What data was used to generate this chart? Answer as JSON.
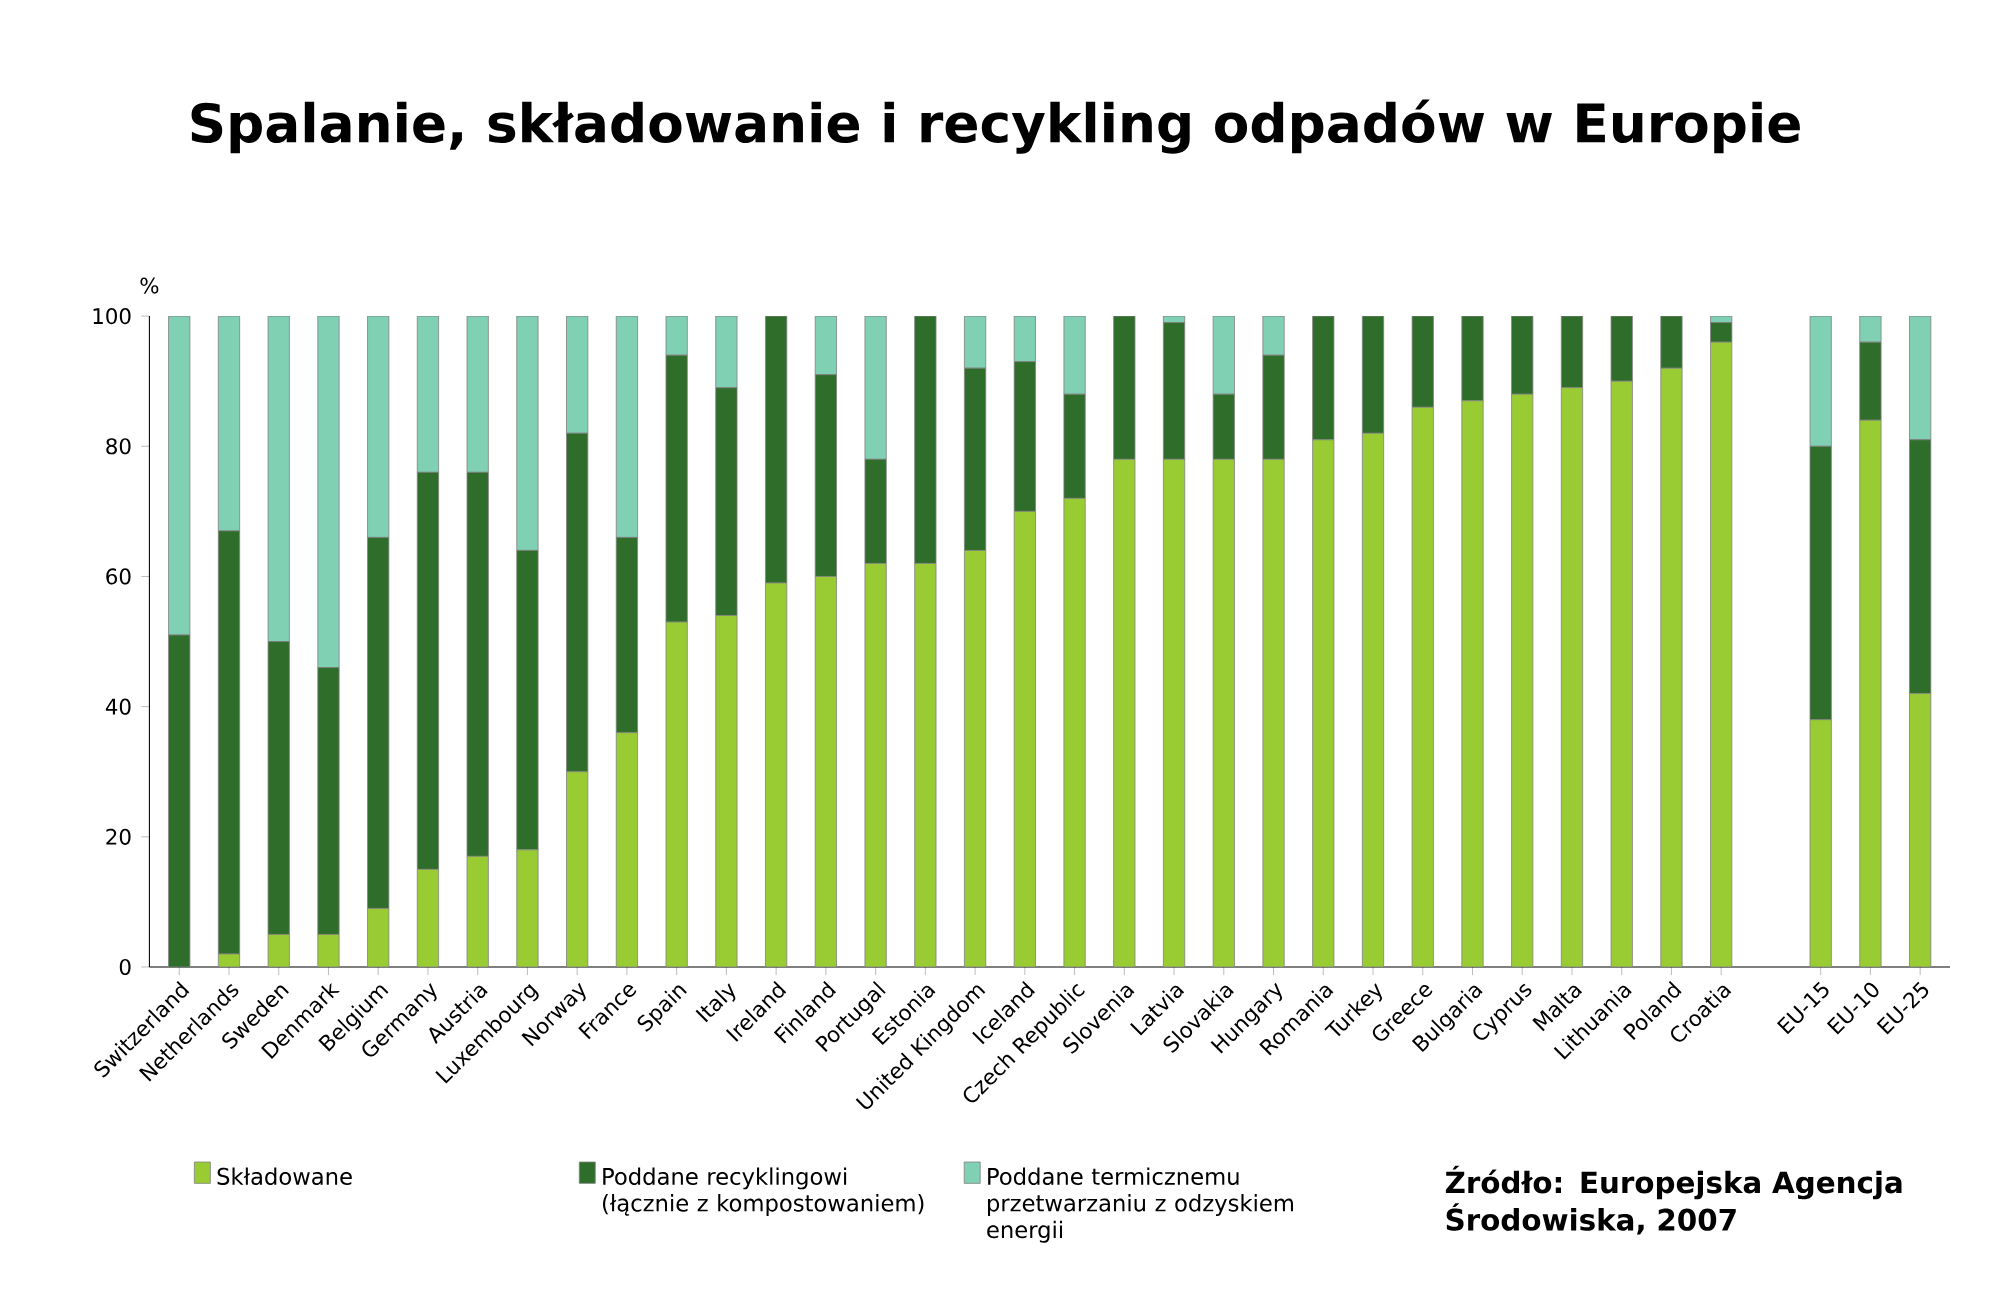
{
  "chart_data": {
    "type": "bar",
    "stacked": true,
    "title": "Spalanie, składowanie i recykling odpadów w Europie",
    "ylabel": "%",
    "categories": [
      "Switzerland",
      "Netherlands",
      "Sweden",
      "Denmark",
      "Belgium",
      "Germany",
      "Austria",
      "Luxembourg",
      "Norway",
      "France",
      "Spain",
      "Italy",
      "Ireland",
      "Finland",
      "Portugal",
      "Estonia",
      "United Kingdom",
      "Iceland",
      "Czech Republic",
      "Slovenia",
      "Latvia",
      "Slovakia",
      "Hungary",
      "Romania",
      "Turkey",
      "Greece",
      "Bulgaria",
      "Cyprus",
      "Malta",
      "Lithuania",
      "Poland",
      "Croatia",
      null,
      "EU-15",
      "EU-10",
      "EU-25"
    ],
    "series": [
      {
        "name": "Składowane",
        "color": "#99cc33",
        "values": [
          0,
          2,
          5,
          5,
          9,
          15,
          17,
          18,
          30,
          36,
          53,
          54,
          59,
          60,
          62,
          62,
          64,
          70,
          72,
          78,
          78,
          78,
          78,
          81,
          82,
          86,
          87,
          88,
          89,
          90,
          92,
          96,
          null,
          38,
          84,
          42
        ]
      },
      {
        "name": "Poddane recyklingowi (łącznie z kompostowaniem)",
        "color": "#2e6e2a",
        "values": [
          51,
          65,
          45,
          41,
          57,
          61,
          59,
          46,
          52,
          30,
          41,
          35,
          41,
          31,
          16,
          38,
          28,
          23,
          16,
          22,
          21,
          10,
          16,
          19,
          18,
          14,
          13,
          12,
          11,
          10,
          8,
          3,
          null,
          42,
          12,
          39
        ]
      },
      {
        "name": "Poddane termicznemu przetwarzaniu z odzyskiem energii",
        "color": "#80d0b4",
        "values": [
          49,
          33,
          50,
          54,
          34,
          24,
          24,
          36,
          18,
          34,
          6,
          11,
          0,
          9,
          22,
          0,
          8,
          7,
          12,
          0,
          1,
          12,
          6,
          0,
          0,
          0,
          0,
          0,
          0,
          0,
          0,
          1,
          null,
          20,
          4,
          19
        ]
      }
    ],
    "ylim": [
      0,
      100
    ],
    "yticks": [
      0,
      20,
      40,
      60,
      80,
      100
    ],
    "legend": "bottom",
    "annotations": [
      "Źródło: Europejska Agencja Środowiska, 2007"
    ]
  }
}
